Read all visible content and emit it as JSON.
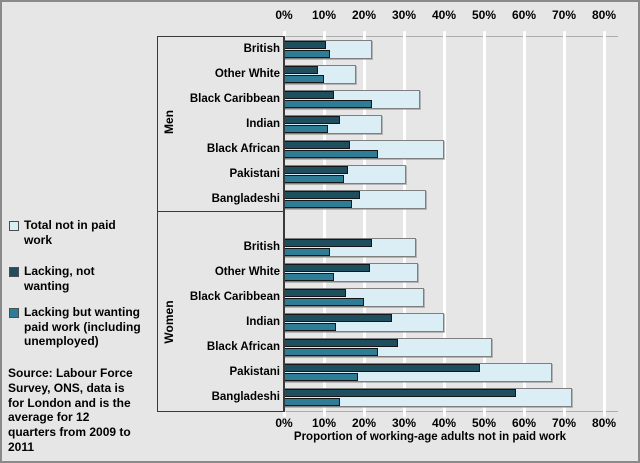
{
  "figure": {
    "background": "#E6E6E6",
    "frame_color": "#8a8a8a"
  },
  "colors": {
    "total": "#DCEEF5",
    "lacking_not_wanting": "#1F4E5E",
    "lacking_but_wanting": "#2E7D96",
    "gridline": "#FFFFFF",
    "axis_line": "#ACACAC",
    "divider_line": "#3a3a3a"
  },
  "legend": {
    "items": [
      {
        "key": "total",
        "label": "Total not in paid\nwork",
        "color": "#DCEEF5"
      },
      {
        "key": "lacking_not_wanting",
        "label": "Lacking, not\nwanting",
        "color": "#1F4E5E"
      },
      {
        "key": "lacking_but_wanting",
        "label": "Lacking but wanting\npaid work (including\nunemployed)",
        "color": "#2E7D96"
      }
    ]
  },
  "source": {
    "text": "Source: Labour Force\nSurvey, ONS, data is\nfor London and is the\naverage for 12\nquarters from 2009 to\n2011"
  },
  "chart_data": {
    "type": "bar",
    "orientation": "horizontal",
    "title": "",
    "xlabel": "Proportion of working-age adults not in paid work",
    "xlim": [
      0,
      80
    ],
    "x_ticks": [
      "0%",
      "10%",
      "20%",
      "30%",
      "40%",
      "50%",
      "60%",
      "70%",
      "80%"
    ],
    "x_tick_step": 10,
    "grid": true,
    "axis_labels_position": "top-and-bottom",
    "legend_position": "left",
    "groups": [
      {
        "label": "Men",
        "categories": [
          "British",
          "Other White",
          "Black Caribbean",
          "Indian",
          "Black African",
          "Pakistani",
          "Bangladeshi"
        ],
        "series": [
          {
            "name": "Total not in paid work",
            "key": "total",
            "values": [
              22,
              18,
              34,
              24.5,
              40,
              30.5,
              35.5
            ]
          },
          {
            "name": "Lacking, not wanting",
            "key": "lacking_not_wanting",
            "values": [
              10.5,
              8.5,
              12.5,
              14,
              16.5,
              16,
              19
            ]
          },
          {
            "name": "Lacking but wanting paid work (including unemployed)",
            "key": "lacking_but_wanting",
            "values": [
              11.5,
              10,
              22,
              11,
              23.5,
              15,
              17
            ]
          }
        ]
      },
      {
        "label": "Women",
        "categories": [
          "British",
          "Other White",
          "Black Caribbean",
          "Indian",
          "Black African",
          "Pakistani",
          "Bangladeshi"
        ],
        "series": [
          {
            "name": "Total not in paid work",
            "key": "total",
            "values": [
              33,
              33.5,
              35,
              40,
              52,
              67,
              72
            ]
          },
          {
            "name": "Lacking, not wanting",
            "key": "lacking_not_wanting",
            "values": [
              22,
              21.5,
              15.5,
              27,
              28.5,
              49,
              58
            ]
          },
          {
            "name": "Lacking but wanting paid work (including unemployed)",
            "key": "lacking_but_wanting",
            "values": [
              11.5,
              12.5,
              20,
              13,
              23.5,
              18.5,
              14
            ]
          }
        ]
      }
    ]
  }
}
